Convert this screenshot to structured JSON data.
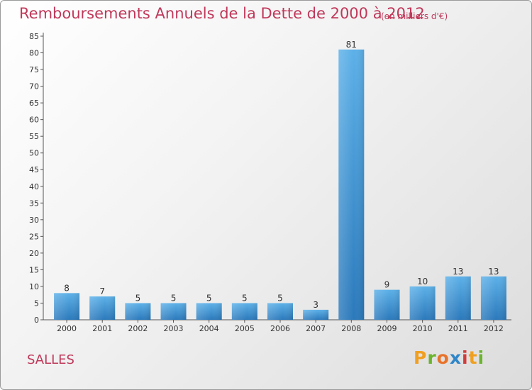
{
  "header": {
    "title": "Remboursements Annuels de la Dette de 2000 à 2012",
    "subtitle": "(en milliers d'€)"
  },
  "footer": {
    "place": "SALLES",
    "logo_text": "Proxiti"
  },
  "colors": {
    "title": "#c0385a",
    "bar_light": "#5aaee6",
    "bar_dark": "#2f7fc1"
  },
  "chart_data": {
    "type": "bar",
    "title": "Remboursements Annuels de la Dette de 2000 à 2012",
    "ylabel": "en milliers d'€",
    "xlabel": "",
    "categories": [
      "2000",
      "2001",
      "2002",
      "2003",
      "2004",
      "2005",
      "2006",
      "2007",
      "2008",
      "2009",
      "2010",
      "2011",
      "2012"
    ],
    "values": [
      8,
      7,
      5,
      5,
      5,
      5,
      5,
      3,
      81,
      9,
      10,
      13,
      13
    ],
    "ylim": [
      0,
      85
    ],
    "yticks": [
      0,
      5,
      10,
      15,
      20,
      25,
      30,
      35,
      40,
      45,
      50,
      55,
      60,
      65,
      70,
      75,
      80,
      85
    ],
    "grid": false,
    "legend": "none"
  }
}
